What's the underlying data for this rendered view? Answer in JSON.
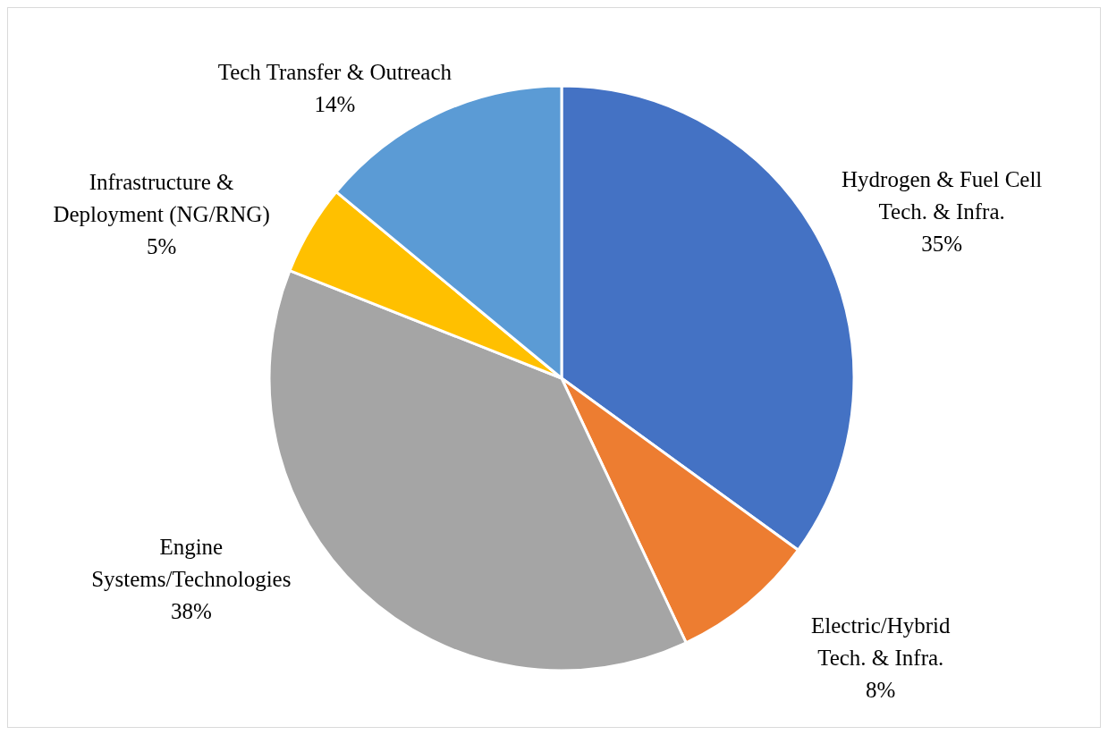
{
  "chart_data": {
    "type": "pie",
    "categories": [
      "Hydrogen & Fuel Cell Tech. & Infra.",
      "Electric/Hybrid Tech. & Infra.",
      "Engine Systems/Technologies",
      "Infrastructure & Deployment (NG/RNG)",
      "Tech Transfer & Outreach"
    ],
    "values": [
      35,
      8,
      38,
      5,
      14
    ],
    "value_labels": [
      "35%",
      "8%",
      "38%",
      "5%",
      "14%"
    ],
    "colors": [
      "#4472c4",
      "#ed7d31",
      "#a5a5a5",
      "#ffc000",
      "#5b9bd5"
    ],
    "legend": false
  }
}
